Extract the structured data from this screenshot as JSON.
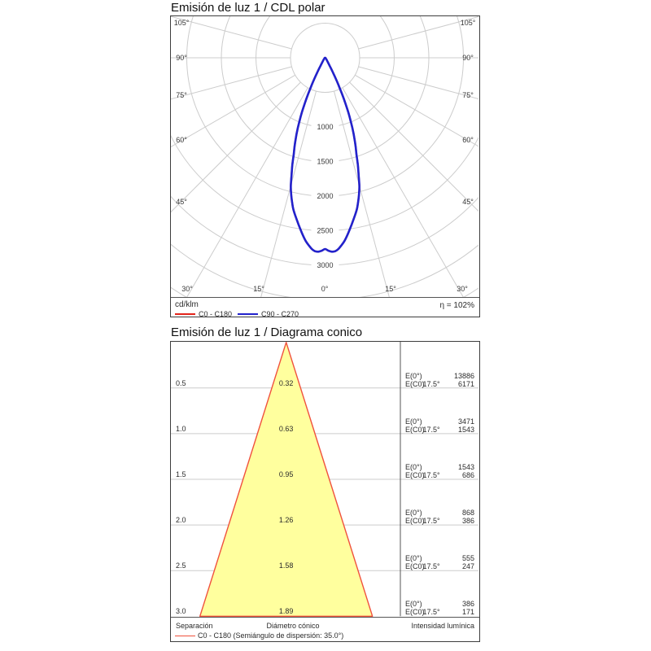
{
  "chart_data": [
    {
      "id": "cdl_polar",
      "type": "polar",
      "title": "Emisión de luz 1 / CDL polar",
      "unit": "cd/klm",
      "eta_label": "η = 102%",
      "angle_ticks_deg": [
        0,
        15,
        30,
        45,
        60,
        75,
        90,
        105
      ],
      "radial_tick_labels": [
        1000,
        1500,
        2000,
        2500,
        3000
      ],
      "radial_circles_cd_klm": [
        500,
        1000,
        1500,
        2000,
        2500,
        3000,
        3500,
        4000
      ],
      "grid_color": "#cccccc",
      "beam_half_angle_deg": 17.5,
      "peak_intensity_cd_klm": 2810,
      "theta_deg": [
        0,
        1,
        2,
        3,
        4,
        5,
        6,
        7,
        8,
        9,
        10,
        11,
        12,
        13,
        14,
        15,
        16,
        17,
        17.5,
        18,
        19,
        20,
        21,
        22,
        23,
        24,
        25,
        26,
        27,
        28,
        29,
        30,
        32,
        35,
        40,
        45,
        50,
        60,
        75,
        90,
        105
      ],
      "series": [
        {
          "name": "C0 - C180",
          "color": "#e3241b",
          "intensity_cd_klm": [
            2765,
            2790,
            2805,
            2800,
            2770,
            2720,
            2665,
            2595,
            2520,
            2445,
            2370,
            2300,
            2225,
            2130,
            2030,
            1915,
            1760,
            1620,
            1540,
            1465,
            1355,
            1240,
            1120,
            990,
            860,
            720,
            590,
            460,
            350,
            245,
            170,
            120,
            70,
            45,
            25,
            15,
            11,
            8,
            5,
            3,
            0
          ]
        },
        {
          "name": "C90 - C270",
          "color": "#2222cc",
          "intensity_cd_klm": [
            2765,
            2790,
            2805,
            2800,
            2770,
            2720,
            2665,
            2595,
            2520,
            2445,
            2370,
            2300,
            2225,
            2130,
            2030,
            1915,
            1760,
            1620,
            1540,
            1465,
            1355,
            1240,
            1120,
            990,
            860,
            720,
            590,
            460,
            350,
            245,
            170,
            120,
            70,
            45,
            25,
            15,
            11,
            8,
            5,
            3,
            0
          ]
        }
      ]
    },
    {
      "id": "cone_diagram",
      "type": "cone",
      "title": "Emisión de luz 1 / Diagrama conico",
      "beam_angle_label": "17.5°",
      "dispersion_semiangle_deg": 35.0,
      "col_headers": [
        "Separación",
        "Diámetro cónico",
        "Intensidad lumínica"
      ],
      "row_value_labels": {
        "e0": "E(0°)",
        "ec0": "E(C0)"
      },
      "legend": {
        "color": "#f0513d",
        "label": "C0 - C180 (Semiángulo de dispersión: 35.0°)"
      },
      "cone_fill": "#ffff9e",
      "rows": [
        {
          "separation": "0.5",
          "diameter": "0.32",
          "E0": "13886",
          "EC0": "6171"
        },
        {
          "separation": "1.0",
          "diameter": "0.63",
          "E0": "3471",
          "EC0": "1543"
        },
        {
          "separation": "1.5",
          "diameter": "0.95",
          "E0": "1543",
          "EC0": "686"
        },
        {
          "separation": "2.0",
          "diameter": "1.26",
          "E0": "868",
          "EC0": "386"
        },
        {
          "separation": "2.5",
          "diameter": "1.58",
          "E0": "555",
          "EC0": "247"
        },
        {
          "separation": "3.0",
          "diameter": "1.89",
          "E0": "386",
          "EC0": "171"
        }
      ]
    }
  ]
}
